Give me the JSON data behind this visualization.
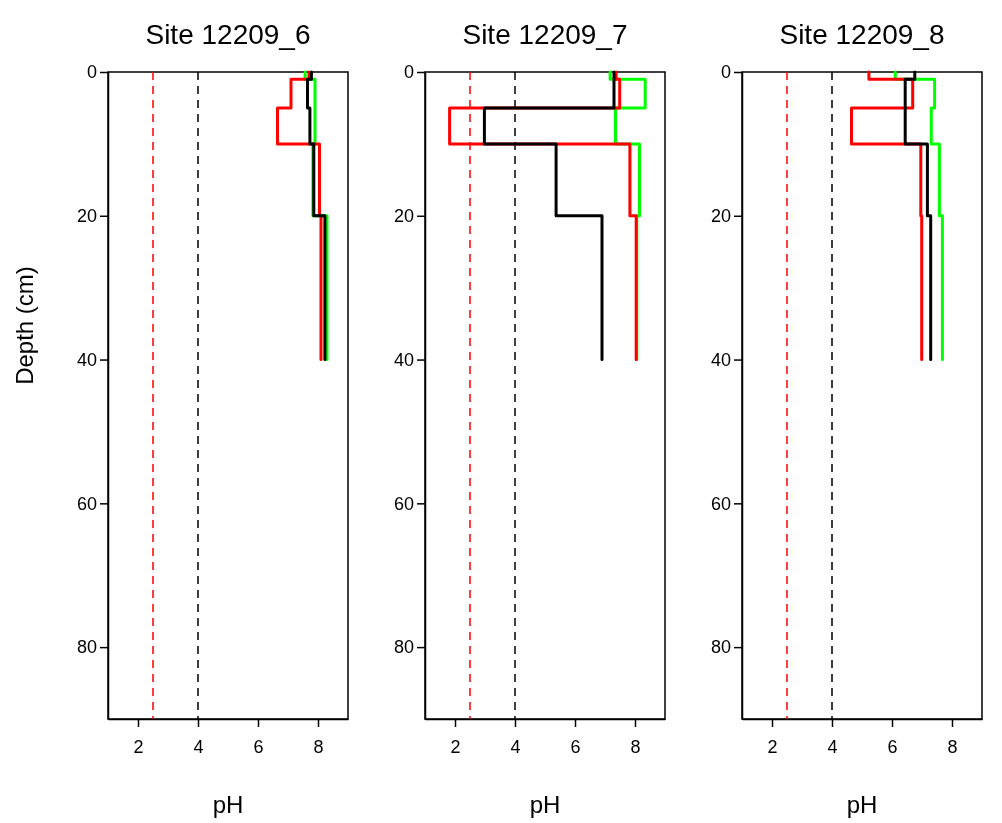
{
  "chart_data": [
    {
      "type": "line",
      "title": "Site 12209_6",
      "xlabel": "pH",
      "ylabel": "Depth (cm)",
      "xlim": [
        1,
        9
      ],
      "ylim": [
        90,
        0
      ],
      "xticks": [
        2,
        4,
        6,
        8
      ],
      "yticks": [
        0,
        20,
        40,
        60,
        80
      ],
      "line_style": "solid",
      "ref_lines": [
        {
          "axis": "x",
          "value": 2.5,
          "color": "#ff0000",
          "line_style": "dashed"
        },
        {
          "axis": "x",
          "value": 4,
          "color": "#000000",
          "line_style": "dashed"
        }
      ],
      "series": [
        {
          "color": "#00ff00",
          "x": [
            7.57,
            7.57,
            7.9,
            7.9,
            7.83,
            7.83,
            8.3,
            8.3
          ],
          "values": [
            0,
            1,
            1,
            10,
            10,
            20,
            20,
            40
          ]
        },
        {
          "color": "#ff0000",
          "x": [
            7.7,
            7.7,
            7.1,
            7.1,
            6.65,
            6.65,
            8.05,
            8.05,
            8.1,
            8.1
          ],
          "values": [
            0,
            1,
            1,
            5,
            5,
            10,
            10,
            20,
            20,
            40
          ]
        },
        {
          "color": "#000000",
          "x": [
            7.78,
            7.78,
            7.65,
            7.65,
            7.73,
            7.73,
            7.86,
            7.86,
            8.23,
            8.23
          ],
          "values": [
            0,
            1,
            1,
            5,
            5,
            10,
            10,
            20,
            20,
            40
          ]
        }
      ]
    },
    {
      "type": "line",
      "title": "Site 12209_7",
      "xlabel": "pH",
      "xlim": [
        1,
        9
      ],
      "ylim": [
        90,
        0
      ],
      "xticks": [
        2,
        4,
        6,
        8
      ],
      "yticks": [
        0,
        20,
        40,
        60,
        80
      ],
      "line_style": "solid",
      "ref_lines": [
        {
          "axis": "x",
          "value": 2.5,
          "color": "#ff0000",
          "line_style": "dashed"
        },
        {
          "axis": "x",
          "value": 4,
          "color": "#000000",
          "line_style": "dashed"
        }
      ],
      "series": [
        {
          "color": "#00ff00",
          "x": [
            7.17,
            7.17,
            8.34,
            8.34,
            7.35,
            7.35,
            8.15,
            8.15,
            8.06,
            8.06
          ],
          "values": [
            0,
            1,
            1,
            5,
            5,
            10,
            10,
            20,
            20,
            40
          ]
        },
        {
          "color": "#ff0000",
          "x": [
            7.37,
            7.37,
            7.49,
            7.49,
            1.82,
            1.82,
            7.83,
            7.83,
            8.04,
            8.04
          ],
          "values": [
            0,
            1,
            1,
            5,
            5,
            10,
            10,
            20,
            20,
            40
          ]
        },
        {
          "color": "#000000",
          "x": [
            7.3,
            7.3,
            2.98,
            2.98,
            5.37,
            5.37,
            6.9,
            6.9
          ],
          "values": [
            0,
            5,
            5,
            10,
            10,
            20,
            20,
            40
          ]
        }
      ]
    },
    {
      "type": "line",
      "title": "Site 12209_8",
      "xlabel": "pH",
      "xlim": [
        1,
        9
      ],
      "ylim": [
        90,
        0
      ],
      "xticks": [
        2,
        4,
        6,
        8
      ],
      "yticks": [
        0,
        20,
        40,
        60,
        80
      ],
      "line_style": "solid",
      "ref_lines": [
        {
          "axis": "x",
          "value": 2.5,
          "color": "#ff0000",
          "line_style": "dashed"
        },
        {
          "axis": "x",
          "value": 4,
          "color": "#000000",
          "line_style": "dashed"
        }
      ],
      "series": [
        {
          "color": "#00ff00",
          "x": [
            6.11,
            6.11,
            7.42,
            7.42,
            7.31,
            7.31,
            7.58,
            7.58,
            7.68,
            7.68
          ],
          "values": [
            0,
            1,
            1,
            5,
            5,
            10,
            10,
            20,
            20,
            40
          ]
        },
        {
          "color": "#ff0000",
          "x": [
            5.23,
            5.23,
            6.69,
            6.69,
            4.65,
            4.65,
            6.96,
            6.96,
            6.99,
            6.99
          ],
          "values": [
            0,
            1,
            1,
            5,
            5,
            10,
            10,
            20,
            20,
            40
          ]
        },
        {
          "color": "#000000",
          "x": [
            6.76,
            6.76,
            6.44,
            6.44,
            7.18,
            7.18,
            7.29,
            7.29
          ],
          "values": [
            0,
            1,
            1,
            10,
            10,
            20,
            20,
            40
          ]
        }
      ]
    }
  ]
}
